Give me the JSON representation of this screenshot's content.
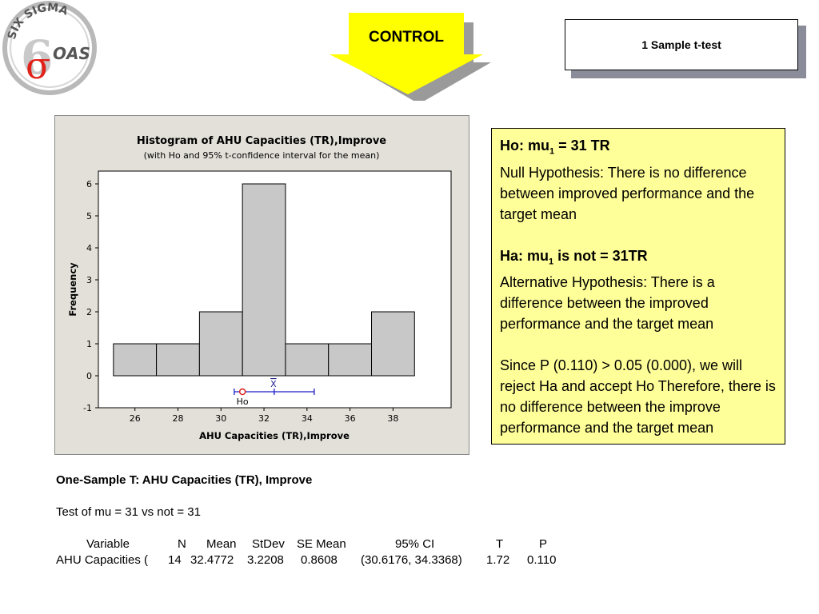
{
  "logo": {
    "top_text": "SIX SIGMA",
    "brand": "OAS",
    "symbol": "σ"
  },
  "header": {
    "control_label": "CONTROL",
    "title": "1 Sample t-test"
  },
  "chart_data": {
    "type": "bar",
    "title": "Histogram of AHU Capacities (TR),Improve",
    "subtitle": "(with Ho and 95% t-confidence interval for the mean)",
    "xlabel": "AHU Capacities (TR),Improve",
    "ylabel": "Frequency",
    "bins": [
      {
        "from": 25,
        "to": 27,
        "value": 1
      },
      {
        "from": 27,
        "to": 29,
        "value": 1
      },
      {
        "from": 29,
        "to": 31,
        "value": 2
      },
      {
        "from": 31,
        "to": 33,
        "value": 6
      },
      {
        "from": 33,
        "to": 35,
        "value": 1
      },
      {
        "from": 35,
        "to": 37,
        "value": 1
      },
      {
        "from": 37,
        "to": 39,
        "value": 2
      }
    ],
    "xticks": [
      26,
      28,
      30,
      32,
      34,
      36,
      38
    ],
    "yticks": [
      -1,
      0,
      1,
      2,
      3,
      4,
      5,
      6
    ],
    "xlim": [
      24.3,
      40.7
    ],
    "ylim": [
      -1,
      6.4
    ],
    "ci": {
      "low": 30.6176,
      "high": 34.3368,
      "mean": 32.4772,
      "y": -0.5
    },
    "ho": {
      "value": 31,
      "label": "Ho"
    },
    "mean_label": "X",
    "colors": {
      "bar": "#c8c8c8",
      "ci": "#1c1cc8",
      "ho": "#d82020"
    }
  },
  "hypothesis": {
    "ho_head": "Ho: mu",
    "ho_sub": "1",
    "ho_tail": " =   31 TR",
    "ho_desc": "Null Hypothesis: There is no difference between improved performance  and the target mean",
    "ha_head": "Ha: mu",
    "ha_sub": "1",
    "ha_tail": " is not  =   31TR",
    "ha_desc": "Alternative Hypothesis: There is a difference between the improved performance and the target mean",
    "conclusion": "Since P (0.110) > 0.05 (0.000), we will reject Ha and accept Ho Therefore, there is no difference between the improve performance and the target mean"
  },
  "output": {
    "heading": "One-Sample T: AHU Capacities (TR), Improve",
    "test_line": "Test of mu = 31 vs not = 31",
    "columns": [
      "Variable",
      "N",
      "Mean",
      "StDev",
      "SE Mean",
      "95% CI",
      "T",
      "P"
    ],
    "row": [
      "AHU Capacities (",
      "14",
      "32.4772",
      "3.2208",
      "0.8608",
      "(30.6176, 34.3368)",
      "1.72",
      "0.110"
    ]
  }
}
